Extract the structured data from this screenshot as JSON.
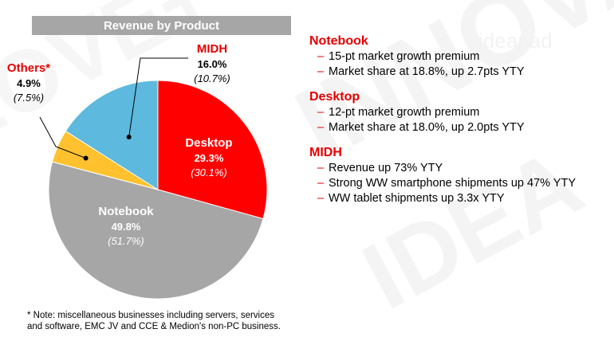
{
  "chart_data": {
    "type": "pie",
    "title": "Revenue by Product",
    "slices": [
      {
        "name": "Desktop",
        "value": 29.3,
        "prior": "(30.1%)",
        "color": "#ff0000"
      },
      {
        "name": "Notebook",
        "value": 49.8,
        "prior": "(51.7%)",
        "color": "#a6a6a6"
      },
      {
        "name": "Others*",
        "value": 4.9,
        "prior": "(7.5%)",
        "color": "#ffc22e"
      },
      {
        "name": "MIDH",
        "value": 16.0,
        "prior": "(10.7%)",
        "color": "#5db9dd"
      }
    ]
  },
  "sections": [
    {
      "title": "Notebook",
      "bullets": [
        "15-pt market growth premium",
        "Market share at 18.8%, up 2.7pts YTY"
      ]
    },
    {
      "title": "Desktop",
      "bullets": [
        "12-pt market growth premium",
        "Market share at 18.0%, up 2.0pts YTY"
      ]
    },
    {
      "title": "MIDH",
      "bullets": [
        "Revenue up 73% YTY",
        "Strong WW smartphone shipments up 47% YTY",
        "WW tablet shipments up 3.3x YTY"
      ]
    }
  ],
  "bullet_dash": "–",
  "footnote": "* Note: miscellaneous businesses including servers, services and software, EMC JV and CCE & Medion's non-PC business.",
  "watermark_words": [
    "INNOVATE",
    "IDEA",
    "LOVE+",
    "ideapad"
  ]
}
